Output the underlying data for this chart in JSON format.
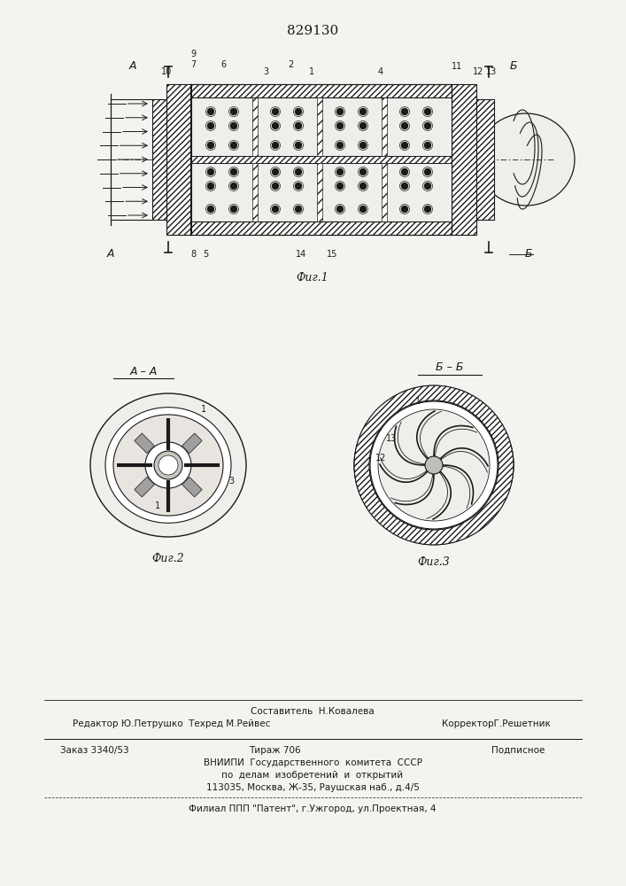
{
  "patent_number": "829130",
  "bg_color": "#f5f3f0",
  "line_color": "#1a1a1a",
  "fig1_caption": "Фиг.1",
  "fig2_caption": "Фиг.2",
  "fig3_caption": "Фиг.3",
  "fig2_label": "А – А",
  "fig3_label": "Б – Б",
  "footer_composer": "Составитель  Н.Ковалева",
  "footer_editor": "Редактор Ю.Петрушко  Техред М.Рейвес",
  "footer_corrector": "КорректорГ.Решетник",
  "footer_order": "Заказ 3340/53",
  "footer_tirazh": "Тираж 706",
  "footer_podp": "Подписное",
  "footer_vniip": "ВНИИПИ  Государственного  комитета  СССР",
  "footer_dela": "по  делам  изобретений  и  открытий",
  "footer_addr": "113035, Москва, Ж-35, Раушская наб., д.4/5",
  "footer_filial": "Филиал ППП \"Патент\", г.Ужгород, ул.Проектная, 4"
}
